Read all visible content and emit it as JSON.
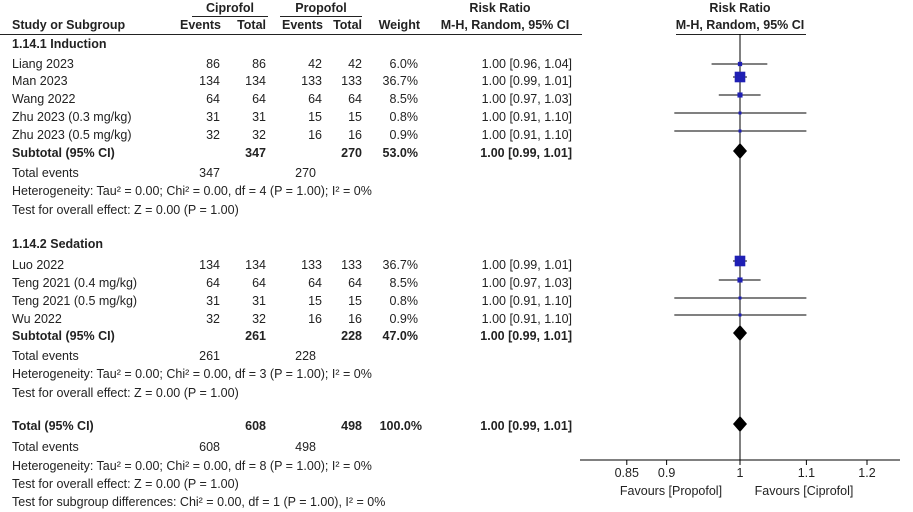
{
  "headers": {
    "group1": "Ciprofol",
    "group2": "Propofol",
    "rr_title": "Risk Ratio",
    "rr_sub": "M-H, Random, 95% CI",
    "plot_title": "Risk Ratio",
    "plot_sub": "M-H, Random, 95% CI",
    "study": "Study or Subgroup",
    "events1": "Events",
    "total1": "Total",
    "events2": "Events",
    "total2": "Total",
    "weight": "Weight"
  },
  "sections": [
    {
      "title": "1.14.1 Induction",
      "studies": [
        {
          "name": "Liang 2023",
          "e1": "86",
          "t1": "86",
          "e2": "42",
          "t2": "42",
          "weight": "6.0%",
          "ci": "1.00 [0.96, 1.04]"
        },
        {
          "name": "Man 2023",
          "e1": "134",
          "t1": "134",
          "e2": "133",
          "t2": "133",
          "weight": "36.7%",
          "ci": "1.00 [0.99, 1.01]"
        },
        {
          "name": "Wang 2022",
          "e1": "64",
          "t1": "64",
          "e2": "64",
          "t2": "64",
          "weight": "8.5%",
          "ci": "1.00 [0.97, 1.03]"
        },
        {
          "name": "Zhu 2023 (0.3 mg/kg)",
          "e1": "31",
          "t1": "31",
          "e2": "15",
          "t2": "15",
          "weight": "0.8%",
          "ci": "1.00 [0.91, 1.10]"
        },
        {
          "name": "Zhu 2023 (0.5 mg/kg)",
          "e1": "32",
          "t1": "32",
          "e2": "16",
          "t2": "16",
          "weight": "0.9%",
          "ci": "1.00 [0.91, 1.10]"
        }
      ],
      "subtotal": {
        "label": "Subtotal (95% CI)",
        "t1": "347",
        "t2": "270",
        "weight": "53.0%",
        "ci": "1.00 [0.99, 1.01]"
      },
      "total_events": {
        "label": "Total events",
        "e1": "347",
        "e2": "270"
      },
      "heterogeneity": "Heterogeneity: Tau² = 0.00; Chi² = 0.00, df = 4 (P = 1.00); I² = 0%",
      "overall": "Test for overall effect: Z = 0.00 (P = 1.00)"
    },
    {
      "title": "1.14.2 Sedation",
      "studies": [
        {
          "name": "Luo 2022",
          "e1": "134",
          "t1": "134",
          "e2": "133",
          "t2": "133",
          "weight": "36.7%",
          "ci": "1.00 [0.99, 1.01]"
        },
        {
          "name": "Teng 2021 (0.4 mg/kg)",
          "e1": "64",
          "t1": "64",
          "e2": "64",
          "t2": "64",
          "weight": "8.5%",
          "ci": "1.00 [0.97, 1.03]"
        },
        {
          "name": "Teng 2021 (0.5 mg/kg)",
          "e1": "31",
          "t1": "31",
          "e2": "15",
          "t2": "15",
          "weight": "0.8%",
          "ci": "1.00 [0.91, 1.10]"
        },
        {
          "name": "Wu 2022",
          "e1": "32",
          "t1": "32",
          "e2": "16",
          "t2": "16",
          "weight": "0.9%",
          "ci": "1.00 [0.91, 1.10]"
        }
      ],
      "subtotal": {
        "label": "Subtotal (95% CI)",
        "t1": "261",
        "t2": "228",
        "weight": "47.0%",
        "ci": "1.00 [0.99, 1.01]"
      },
      "total_events": {
        "label": "Total events",
        "e1": "261",
        "e2": "228"
      },
      "heterogeneity": "Heterogeneity: Tau² = 0.00; Chi² = 0.00, df = 3 (P = 1.00); I² = 0%",
      "overall": "Test for overall effect: Z = 0.00 (P = 1.00)"
    }
  ],
  "total": {
    "label": "Total (95% CI)",
    "t1": "608",
    "t2": "498",
    "weight": "100.0%",
    "ci": "1.00 [0.99, 1.01]",
    "events_label": "Total events",
    "e1": "608",
    "e2": "498",
    "heterogeneity": "Heterogeneity: Tau² = 0.00; Chi² = 0.00, df = 8 (P = 1.00); I² = 0%",
    "overall": "Test for overall effect: Z = 0.00 (P = 1.00)",
    "subgroup": "Test for subgroup differences: Chi² = 0.00, df = 1 (P = 1.00), I² = 0%"
  },
  "favours": {
    "left": "Favours [Propofol]",
    "right": "Favours [Ciprofol]"
  },
  "colors": {
    "study_marker": "#1f1fb4",
    "diamond": "#000000",
    "text": "#222222"
  },
  "chart_data": {
    "type": "forest",
    "scale": "log",
    "xlim": [
      0.8,
      1.25
    ],
    "ticks": [
      0.85,
      0.9,
      1,
      1.1,
      1.2
    ],
    "tick_labels": [
      "0.85",
      "0.9",
      "1",
      "1.1",
      "1.2"
    ],
    "null_line": 1,
    "studies": [
      {
        "name": "Liang 2023",
        "rr": 1.0,
        "lo": 0.96,
        "hi": 1.04,
        "weight": 6.0
      },
      {
        "name": "Man 2023",
        "rr": 1.0,
        "lo": 0.99,
        "hi": 1.01,
        "weight": 36.7
      },
      {
        "name": "Wang 2022",
        "rr": 1.0,
        "lo": 0.97,
        "hi": 1.03,
        "weight": 8.5
      },
      {
        "name": "Zhu 2023 (0.3 mg/kg)",
        "rr": 1.0,
        "lo": 0.91,
        "hi": 1.1,
        "weight": 0.8
      },
      {
        "name": "Zhu 2023 (0.5 mg/kg)",
        "rr": 1.0,
        "lo": 0.91,
        "hi": 1.1,
        "weight": 0.9
      },
      {
        "name": "Luo 2022",
        "rr": 1.0,
        "lo": 0.99,
        "hi": 1.01,
        "weight": 36.7
      },
      {
        "name": "Teng 2021 (0.4 mg/kg)",
        "rr": 1.0,
        "lo": 0.97,
        "hi": 1.03,
        "weight": 8.5
      },
      {
        "name": "Teng 2021 (0.5 mg/kg)",
        "rr": 1.0,
        "lo": 0.91,
        "hi": 1.1,
        "weight": 0.8
      },
      {
        "name": "Wu 2022",
        "rr": 1.0,
        "lo": 0.91,
        "hi": 1.1,
        "weight": 0.9
      }
    ],
    "pooled": [
      {
        "name": "Subtotal 1.14.1 Induction",
        "rr": 1.0,
        "lo": 0.99,
        "hi": 1.01
      },
      {
        "name": "Subtotal 1.14.2 Sedation",
        "rr": 1.0,
        "lo": 0.99,
        "hi": 1.01
      },
      {
        "name": "Total",
        "rr": 1.0,
        "lo": 0.99,
        "hi": 1.01
      }
    ]
  }
}
